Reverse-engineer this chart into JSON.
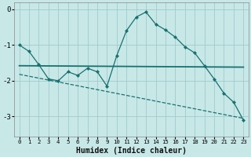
{
  "xlabel": "Humidex (Indice chaleur)",
  "background_color": "#c8e8e8",
  "grid_color": "#a0cccc",
  "line_color": "#1a7070",
  "xlim": [
    -0.5,
    23.5
  ],
  "ylim": [
    -3.55,
    0.18
  ],
  "yticks": [
    0,
    -1,
    -2,
    -3
  ],
  "xticks": [
    0,
    1,
    2,
    3,
    4,
    5,
    6,
    7,
    8,
    9,
    10,
    11,
    12,
    13,
    14,
    15,
    16,
    17,
    18,
    19,
    20,
    21,
    22,
    23
  ],
  "line1_x": [
    0,
    1,
    2,
    3,
    4,
    5,
    6,
    7,
    8,
    9,
    10,
    11,
    12,
    13,
    14,
    15,
    16,
    17,
    18,
    19,
    20,
    21,
    22,
    23
  ],
  "line1_y": [
    -1.0,
    -1.18,
    -1.55,
    -1.95,
    -2.0,
    -1.75,
    -1.85,
    -1.65,
    -1.75,
    -2.15,
    -1.3,
    -0.6,
    -0.22,
    -0.08,
    -0.42,
    -0.58,
    -0.78,
    -1.05,
    -1.22,
    -1.58,
    -1.95,
    -2.35,
    -2.6,
    -3.1
  ],
  "line2_x": [
    0,
    23
  ],
  "line2_y": [
    -1.58,
    -1.62
  ],
  "line3_x": [
    0,
    23
  ],
  "line3_y": [
    -1.82,
    -3.05
  ],
  "line3_style": "--"
}
